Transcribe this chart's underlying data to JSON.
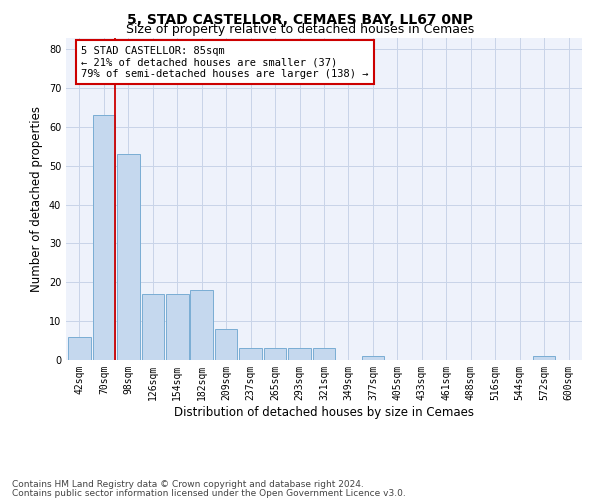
{
  "title_line1": "5, STAD CASTELLOR, CEMAES BAY, LL67 0NP",
  "title_line2": "Size of property relative to detached houses in Cemaes",
  "xlabel": "Distribution of detached houses by size in Cemaes",
  "ylabel": "Number of detached properties",
  "bar_values": [
    6,
    63,
    53,
    17,
    17,
    18,
    8,
    3,
    3,
    3,
    3,
    0,
    1,
    0,
    0,
    0,
    0,
    0,
    0,
    1,
    0
  ],
  "bin_labels": [
    "42sqm",
    "70sqm",
    "98sqm",
    "126sqm",
    "154sqm",
    "182sqm",
    "209sqm",
    "237sqm",
    "265sqm",
    "293sqm",
    "321sqm",
    "349sqm",
    "377sqm",
    "405sqm",
    "433sqm",
    "461sqm",
    "488sqm",
    "516sqm",
    "544sqm",
    "572sqm",
    "600sqm"
  ],
  "bar_color": "#c5d8ee",
  "bar_edge_color": "#7aadd4",
  "bar_edge_width": 0.7,
  "vline_color": "#cc0000",
  "vline_linewidth": 1.3,
  "annotation_text": "5 STAD CASTELLOR: 85sqm\n← 21% of detached houses are smaller (37)\n79% of semi-detached houses are larger (138) →",
  "annotation_box_color": "#ffffff",
  "annotation_box_edge": "#cc0000",
  "ylim": [
    0,
    83
  ],
  "yticks": [
    0,
    10,
    20,
    30,
    40,
    50,
    60,
    70,
    80
  ],
  "grid_color": "#c8d4e8",
  "background_color": "#eef2fb",
  "footer_line1": "Contains HM Land Registry data © Crown copyright and database right 2024.",
  "footer_line2": "Contains public sector information licensed under the Open Government Licence v3.0.",
  "title_fontsize": 10,
  "subtitle_fontsize": 9,
  "axis_label_fontsize": 8.5,
  "tick_fontsize": 7,
  "annotation_fontsize": 7.5,
  "footer_fontsize": 6.5
}
